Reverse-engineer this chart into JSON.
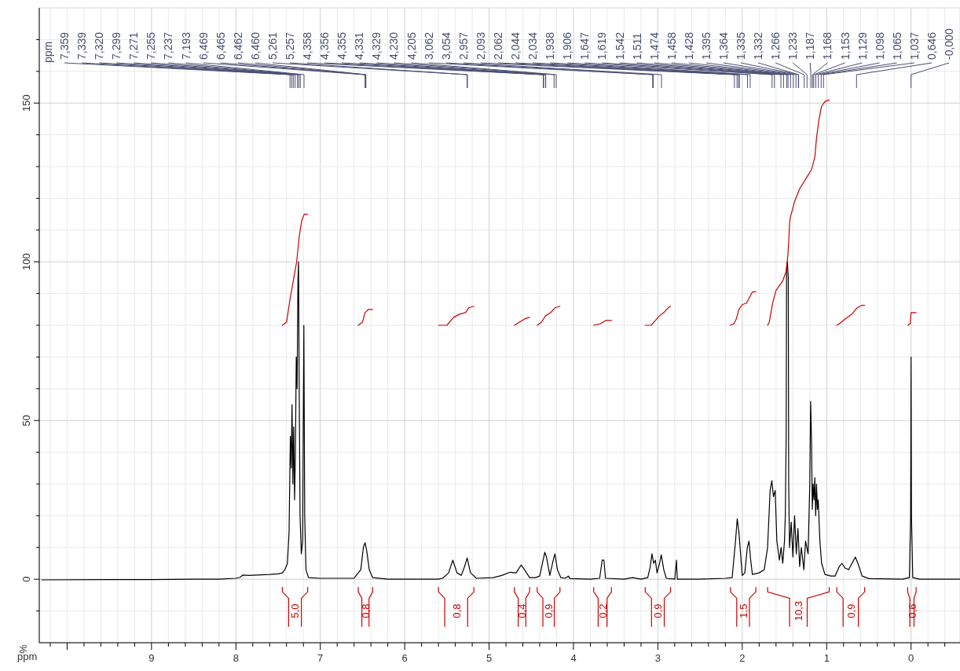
{
  "chart_data": {
    "type": "line",
    "xlabel": "ppm",
    "ylabel": "%",
    "xlim": [
      10.33,
      -0.58
    ],
    "ylim": [
      -20,
      180
    ],
    "xticks": [
      {
        "value": 10.2,
        "label": null
      },
      {
        "value": 10,
        "label": null
      },
      {
        "value": 9.8,
        "label": null
      },
      {
        "value": 9.6,
        "label": null
      },
      {
        "value": 9.4,
        "label": null
      },
      {
        "value": 9.2,
        "label": null
      },
      9,
      {
        "value": 8.8,
        "label": null
      },
      {
        "value": 8.6,
        "label": null
      },
      {
        "value": 8.4,
        "label": null
      },
      {
        "value": 8.2,
        "label": null
      },
      8,
      {
        "value": 7.8,
        "label": null
      },
      {
        "value": 7.6,
        "label": null
      },
      {
        "value": 7.4,
        "label": null
      },
      {
        "value": 7.2,
        "label": null
      },
      7,
      {
        "value": 6.8,
        "label": null
      },
      {
        "value": 6.6,
        "label": null
      },
      {
        "value": 6.4,
        "label": null
      },
      {
        "value": 6.2,
        "label": null
      },
      6,
      {
        "value": 5.8,
        "label": null
      },
      {
        "value": 5.6,
        "label": null
      },
      {
        "value": 5.4,
        "label": null
      },
      {
        "value": 5.2,
        "label": null
      },
      5,
      {
        "value": 4.8,
        "label": null
      },
      {
        "value": 4.6,
        "label": null
      },
      {
        "value": 4.4,
        "label": null
      },
      {
        "value": 4.2,
        "label": null
      },
      4,
      {
        "value": 3.8,
        "label": null
      },
      {
        "value": 3.6,
        "label": null
      },
      {
        "value": 3.4,
        "label": null
      },
      {
        "value": 3.2,
        "label": null
      },
      3,
      {
        "value": 2.8,
        "label": null
      },
      {
        "value": 2.6,
        "label": null
      },
      {
        "value": 2.4,
        "label": null
      },
      {
        "value": 2.2,
        "label": null
      },
      2,
      {
        "value": 1.8,
        "label": null
      },
      {
        "value": 1.6,
        "label": null
      },
      {
        "value": 1.4,
        "label": null
      },
      {
        "value": 1.2,
        "label": null
      },
      1,
      {
        "value": 0.8,
        "label": null
      },
      {
        "value": 0.6,
        "label": null
      },
      {
        "value": 0.4,
        "label": null
      },
      {
        "value": 0.2,
        "label": null
      },
      0,
      {
        "value": -0.2,
        "label": null
      },
      {
        "value": -0.4,
        "label": null
      }
    ],
    "yticks": [
      {
        "value": -10,
        "label": null
      },
      0,
      {
        "value": 10,
        "label": null
      },
      {
        "value": 20,
        "label": null
      },
      {
        "value": 30,
        "label": null
      },
      {
        "value": 40,
        "label": null
      },
      50,
      {
        "value": 60,
        "label": null
      },
      {
        "value": 70,
        "label": null
      },
      {
        "value": 80,
        "label": null
      },
      {
        "value": 90,
        "label": null
      },
      100,
      {
        "value": 110,
        "label": null
      },
      {
        "value": 120,
        "label": null
      },
      {
        "value": 130,
        "label": null
      },
      {
        "value": 140,
        "label": null
      },
      150,
      {
        "value": 160,
        "label": null
      },
      {
        "value": 170,
        "label": null
      }
    ],
    "grid": true,
    "series": [
      {
        "color": "#000000",
        "x": [
          10.3,
          9.5,
          9.0,
          8.5,
          8.2,
          8.0,
          7.95,
          7.92,
          7.85,
          7.6,
          7.5,
          7.45,
          7.42,
          7.39,
          7.37,
          7.355,
          7.345,
          7.335,
          7.325,
          7.315,
          7.305,
          7.295,
          7.285,
          7.275,
          7.265,
          7.258,
          7.25,
          7.24,
          7.225,
          7.21,
          7.195,
          7.185,
          7.17,
          7.14,
          7.0,
          6.6,
          6.52,
          6.49,
          6.47,
          6.45,
          6.42,
          6.38,
          6.2,
          5.6,
          5.55,
          5.48,
          5.43,
          5.38,
          5.33,
          5.29,
          5.26,
          5.22,
          5.15,
          4.95,
          4.85,
          4.75,
          4.68,
          4.62,
          4.58,
          4.52,
          4.45,
          4.4,
          4.36,
          4.34,
          4.32,
          4.28,
          4.24,
          4.22,
          4.19,
          4.15,
          4.1,
          4.06,
          4.04,
          3.8,
          3.69,
          3.66,
          3.64,
          3.62,
          3.4,
          3.3,
          3.2,
          3.12,
          3.09,
          3.07,
          3.05,
          3.03,
          3.01,
          2.98,
          2.96,
          2.93,
          2.9,
          2.8,
          2.78,
          2.77,
          2.5,
          2.2,
          2.12,
          2.08,
          2.06,
          2.04,
          2.02,
          2.0,
          1.97,
          1.94,
          1.92,
          1.9,
          1.88,
          1.8,
          1.74,
          1.7,
          1.67,
          1.65,
          1.63,
          1.61,
          1.59,
          1.56,
          1.54,
          1.52,
          1.5,
          1.49,
          1.48,
          1.475,
          1.465,
          1.455,
          1.45,
          1.44,
          1.42,
          1.4,
          1.38,
          1.36,
          1.34,
          1.32,
          1.3,
          1.27,
          1.25,
          1.22,
          1.2,
          1.19,
          1.18,
          1.17,
          1.16,
          1.15,
          1.14,
          1.13,
          1.12,
          1.11,
          1.1,
          1.08,
          1.06,
          1.02,
          0.95,
          0.9,
          0.85,
          0.82,
          0.78,
          0.74,
          0.7,
          0.66,
          0.63,
          0.58,
          0.5,
          0.1,
          0.02,
          0.005,
          0.0,
          -0.005,
          -0.02,
          -0.1,
          -0.58
        ],
        "values": [
          -0.2,
          -0.1,
          -0.1,
          0,
          0,
          0.3,
          0.6,
          1.3,
          1.2,
          1.5,
          1.7,
          2,
          3,
          5,
          15,
          45,
          35,
          55,
          30,
          48,
          25,
          40,
          70,
          60,
          94,
          100,
          60,
          20,
          8,
          12,
          80,
          20,
          3,
          0.5,
          0.3,
          0.3,
          3,
          10,
          11.5,
          9,
          3,
          0.5,
          0,
          0,
          0.3,
          2,
          6,
          2,
          1.2,
          4,
          6.7,
          2,
          0.3,
          0.5,
          1.2,
          2.2,
          2,
          4.5,
          3,
          0.5,
          0.5,
          1,
          6,
          8.5,
          7,
          1.2,
          6,
          8,
          3,
          0.5,
          0.3,
          1,
          0.2,
          0,
          0.3,
          6,
          6,
          0.3,
          0,
          0.5,
          0,
          0.5,
          4,
          8,
          5,
          6,
          2,
          5,
          7.7,
          3,
          0.3,
          0,
          6,
          0,
          0,
          0.3,
          0.5,
          12,
          19,
          15,
          8,
          1.2,
          2,
          10,
          12,
          6,
          1.5,
          2,
          3,
          10,
          28,
          31,
          26,
          28,
          12,
          6,
          10,
          5,
          12,
          20,
          45,
          98,
          100,
          95,
          30,
          10,
          18,
          7,
          20,
          8,
          16,
          4,
          10,
          3,
          12,
          8,
          30,
          56,
          45,
          22,
          30,
          25,
          32,
          20,
          30,
          22,
          25,
          12,
          5,
          1.5,
          1,
          1,
          4,
          5,
          3.5,
          3,
          5,
          7,
          5,
          1,
          0.2,
          0,
          0.5,
          20,
          70,
          20,
          0.5,
          0,
          0
        ]
      },
      {
        "type": "line",
        "color": "#cc0000",
        "x": [
          7.45,
          7.4,
          7.36,
          7.32,
          7.28,
          7.25,
          7.22,
          7.19,
          7.15
        ],
        "values": [
          80,
          81,
          88,
          94,
          100,
          108,
          113,
          115,
          115
        ]
      },
      {
        "type": "line",
        "color": "#cc0000",
        "x": [
          6.55,
          6.5,
          6.47,
          6.43,
          6.38
        ],
        "values": [
          80,
          81,
          84,
          85,
          85
        ]
      },
      {
        "type": "line",
        "color": "#cc0000",
        "x": [
          5.6,
          5.5,
          5.42,
          5.35,
          5.28,
          5.24,
          5.18
        ],
        "values": [
          80,
          80,
          82.5,
          83.5,
          84,
          85.5,
          86
        ]
      },
      {
        "type": "line",
        "color": "#cc0000",
        "x": [
          4.7,
          4.64,
          4.58,
          4.52
        ],
        "values": [
          80,
          81,
          82,
          82.5
        ]
      },
      {
        "type": "line",
        "color": "#cc0000",
        "x": [
          4.43,
          4.38,
          4.33,
          4.27,
          4.22,
          4.16
        ],
        "values": [
          80,
          81,
          83,
          84,
          85.5,
          86
        ]
      },
      {
        "type": "line",
        "color": "#cc0000",
        "x": [
          3.76,
          3.68,
          3.62,
          3.55
        ],
        "values": [
          80,
          80.5,
          81.5,
          81.5
        ]
      },
      {
        "type": "line",
        "color": "#cc0000",
        "x": [
          3.15,
          3.08,
          3.03,
          2.98,
          2.93,
          2.88,
          2.85
        ],
        "values": [
          80,
          80,
          81.5,
          83,
          84,
          85.5,
          86
        ]
      },
      {
        "type": "line",
        "color": "#cc0000",
        "x": [
          2.14,
          2.1,
          2.07,
          2.04,
          2.0,
          1.95,
          1.92,
          1.88,
          1.84
        ],
        "values": [
          80,
          80.5,
          82,
          85,
          86.5,
          87,
          88.5,
          90.5,
          90.6
        ]
      },
      {
        "type": "line",
        "color": "#cc0000",
        "x": [
          1.7,
          1.68,
          1.64,
          1.6,
          1.52,
          1.48,
          1.46,
          1.45,
          1.44,
          1.43,
          1.38,
          1.32,
          1.25,
          1.18,
          1.14,
          1.12,
          1.09,
          1.06,
          1.02,
          0.97
        ],
        "values": [
          80,
          81,
          87,
          91,
          94,
          97,
          102,
          106,
          112,
          114,
          119,
          123,
          126,
          129,
          133,
          139,
          145,
          149,
          150.5,
          151
        ]
      },
      {
        "type": "line",
        "color": "#cc0000",
        "x": [
          0.88,
          0.85,
          0.78,
          0.7,
          0.64,
          0.58,
          0.55
        ],
        "values": [
          80,
          80.5,
          82,
          83.5,
          85.5,
          86.3,
          86.3
        ]
      },
      {
        "type": "line",
        "color": "#cc0000",
        "x": [
          0.04,
          0.01,
          0.0,
          -0.03,
          -0.06
        ],
        "values": [
          80,
          80.5,
          84,
          84,
          84
        ]
      }
    ],
    "annotations": [
      "ppm",
      "5,0",
      "0,8",
      "0,8",
      "0,4",
      "0,9",
      "0,2",
      "0,9",
      "1,5",
      "10,3",
      "0,9",
      "0,6",
      {
        "text": "7,359",
        "x": 7.359
      },
      {
        "text": "7,339",
        "x": 7.339
      },
      {
        "text": "7,320",
        "x": 7.32
      },
      {
        "text": "7,299",
        "x": 7.299
      },
      {
        "text": "7,271",
        "x": 7.271
      },
      {
        "text": "7,255",
        "x": 7.255
      },
      {
        "text": "7,237",
        "x": 7.237
      },
      {
        "text": "7,193",
        "x": 7.193
      },
      {
        "text": "6,469",
        "x": 6.469
      },
      {
        "text": "6,465",
        "x": 6.465
      },
      {
        "text": "6,462",
        "x": 6.462
      },
      {
        "text": "6,460",
        "x": 6.46
      },
      {
        "text": "5,261",
        "x": 5.261
      },
      {
        "text": "5,257",
        "x": 5.257
      },
      {
        "text": "4,358",
        "x": 4.358
      },
      {
        "text": "4,356",
        "x": 4.356
      },
      {
        "text": "4,355",
        "x": 4.355
      },
      {
        "text": "4,331",
        "x": 4.331
      },
      {
        "text": "4,329",
        "x": 4.329
      },
      {
        "text": "4,230",
        "x": 4.23
      },
      {
        "text": "4,205",
        "x": 4.205
      },
      {
        "text": "3,062",
        "x": 3.062
      },
      {
        "text": "3,054",
        "x": 3.054
      },
      {
        "text": "2,957",
        "x": 2.957
      },
      {
        "text": "2,093",
        "x": 2.093
      },
      {
        "text": "2,062",
        "x": 2.062
      },
      {
        "text": "2,044",
        "x": 2.044
      },
      {
        "text": "2,034",
        "x": 2.034
      },
      {
        "text": "1,938",
        "x": 1.938
      },
      {
        "text": "1,906",
        "x": 1.906
      },
      {
        "text": "1,647",
        "x": 1.647
      },
      {
        "text": "1,619",
        "x": 1.619
      },
      {
        "text": "1,542",
        "x": 1.542
      },
      {
        "text": "1,511",
        "x": 1.511
      },
      {
        "text": "1,474",
        "x": 1.474
      },
      {
        "text": "1,458",
        "x": 1.458
      },
      {
        "text": "1,428",
        "x": 1.428
      },
      {
        "text": "1,395",
        "x": 1.395
      },
      {
        "text": "1,364",
        "x": 1.364
      },
      {
        "text": "1,335",
        "x": 1.335
      },
      {
        "text": "1,332",
        "x": 1.332
      },
      {
        "text": "1,266",
        "x": 1.266
      },
      {
        "text": "1,233",
        "x": 1.233
      },
      {
        "text": "1,187",
        "x": 1.187
      },
      {
        "text": "1,168",
        "x": 1.168
      },
      {
        "text": "1,153",
        "x": 1.153
      },
      {
        "text": "1,129",
        "x": 1.129
      },
      {
        "text": "1,098",
        "x": 1.098
      },
      {
        "text": "1,065",
        "x": 1.065
      },
      {
        "text": "1,037",
        "x": 1.037
      },
      {
        "text": "0,646",
        "x": 0.646
      },
      {
        "text": "-0,000",
        "x": 0
      }
    ]
  }
}
